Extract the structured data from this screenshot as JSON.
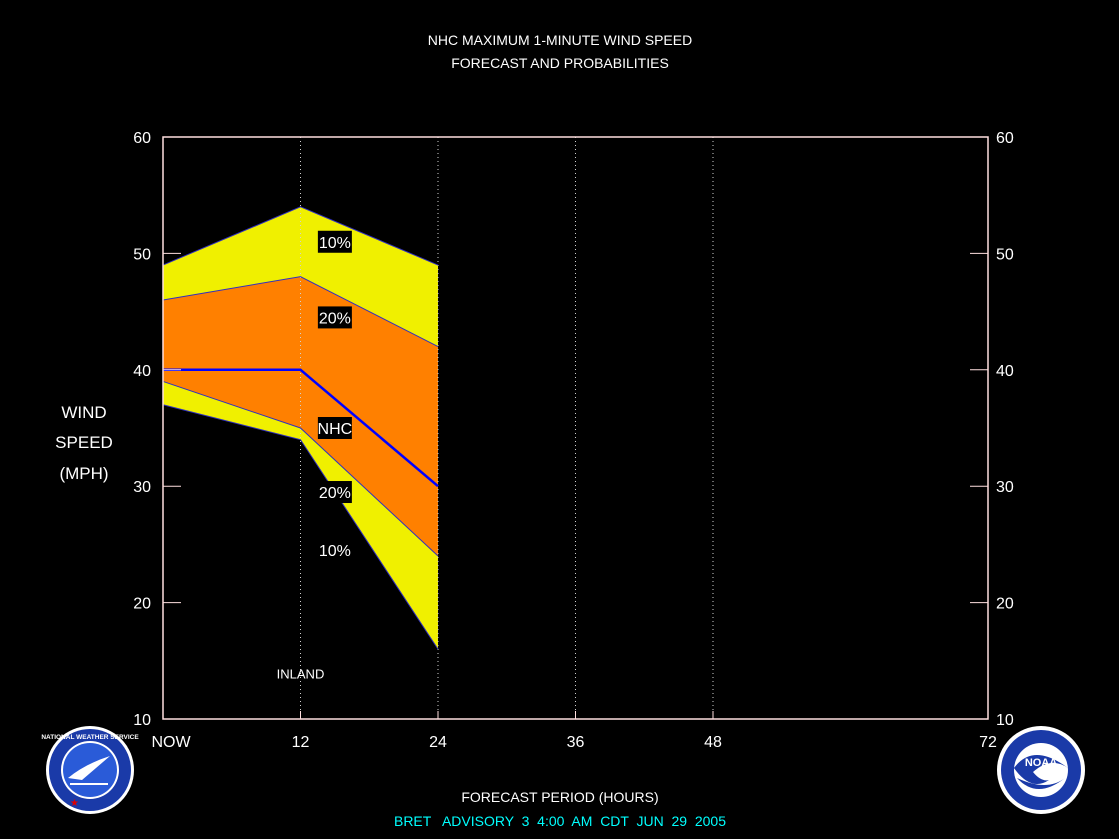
{
  "chart_data": {
    "type": "area",
    "title": "NHC MAXIMUM 1-MINUTE WIND SPEED",
    "subtitle": "FORECAST AND PROBABILITIES",
    "xlabel": "FORECAST PERIOD (HOURS)",
    "ylabel_lines": [
      "WIND",
      "SPEED",
      "(MPH)"
    ],
    "footer": "BRET   ADVISORY  3  4:00  AM  CDT  JUN  29  2005",
    "xlim": [
      0,
      72
    ],
    "ylim": [
      10,
      60
    ],
    "x_ticks": [
      {
        "value": 0,
        "label": "NOW"
      },
      {
        "value": 12,
        "label": "12"
      },
      {
        "value": 24,
        "label": "24"
      },
      {
        "value": 36,
        "label": "36"
      },
      {
        "value": 48,
        "label": "48"
      },
      {
        "value": 72,
        "label": "72"
      }
    ],
    "y_ticks": [
      10,
      20,
      30,
      40,
      50,
      60
    ],
    "x": [
      0,
      12,
      24
    ],
    "series": [
      {
        "name": "10%",
        "values": [
          49,
          54,
          49
        ],
        "color": "#f0f000"
      },
      {
        "name": "20%",
        "values": [
          46,
          48,
          42
        ],
        "color": "#ff8000"
      },
      {
        "name": "NHC",
        "values": [
          40,
          40,
          30
        ],
        "color": "#0000ff"
      },
      {
        "name": "20%",
        "values": [
          39,
          35,
          24
        ],
        "color": "#ff8000"
      },
      {
        "name": "10%",
        "values": [
          37,
          34,
          16
        ],
        "color": "#f0f000"
      }
    ],
    "series_labels": [
      {
        "text": "10%",
        "x": 15,
        "y": 51
      },
      {
        "text": "20%",
        "x": 15,
        "y": 44.5
      },
      {
        "text": "NHC",
        "x": 15,
        "y": 35
      },
      {
        "text": "20%",
        "x": 15,
        "y": 29.5
      },
      {
        "text": "10%",
        "x": 15,
        "y": 24.5
      }
    ],
    "annotations": [
      {
        "text": "INLAND",
        "x": 0,
        "y": 13.5
      }
    ],
    "grid": "vertical-dotted",
    "colors": {
      "background": "#000000",
      "frame": "#ffe0e0",
      "grid": "#d0d0d0",
      "text": "#ffffff",
      "footer": "#00ffff"
    }
  },
  "logos": {
    "left": "nws-logo",
    "right": "noaa-logo",
    "left_text": "NATIONAL WEATHER SERVICE",
    "right_text": "NOAA"
  }
}
